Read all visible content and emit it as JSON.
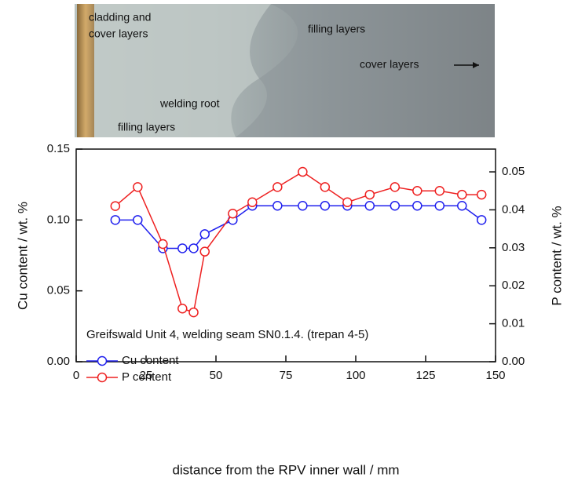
{
  "chart_data": {
    "type": "line",
    "annotations": [
      "cladding and",
      "cover layers",
      "filling layers",
      "welding root",
      "filling layers",
      "cover layers"
    ],
    "xlabel": "distance from the RPV inner wall / mm",
    "ylabel": "Cu content / wt. %",
    "y2label": "P content / wt. %",
    "legend_title": "Greifswald Unit 4, welding seam SN0.1.4. (trepan 4-5)",
    "x": [
      14,
      22,
      31,
      38,
      42,
      46,
      56,
      63,
      72,
      81,
      89,
      97,
      105,
      114,
      122,
      130,
      138,
      145
    ],
    "series": [
      {
        "name": "Cu content",
        "color": "#2020ee",
        "values": [
          0.1,
          0.1,
          0.08,
          0.08,
          0.08,
          0.09,
          0.1,
          0.11,
          0.11,
          0.11,
          0.11,
          0.11,
          0.11,
          0.11,
          0.11,
          0.11,
          0.11,
          0.1
        ]
      },
      {
        "name": "P content",
        "color": "#ee2020",
        "axis": "y2",
        "values": [
          0.041,
          0.046,
          0.031,
          0.014,
          0.013,
          0.029,
          0.039,
          0.042,
          0.046,
          0.05,
          0.046,
          0.042,
          0.044,
          0.046,
          0.045,
          0.045,
          0.044,
          0.044
        ]
      }
    ],
    "xlim": [
      0,
      150
    ],
    "xticks": [
      0,
      25,
      50,
      75,
      100,
      125,
      150
    ],
    "ylim": [
      0,
      0.15
    ],
    "yticks": [
      {
        "value": 0,
        "label": "0.00"
      },
      0.05,
      {
        "value": 0.1,
        "label": "0.10"
      },
      0.15
    ],
    "y2lim": [
      0,
      0.056
    ],
    "y2ticks": [
      {
        "value": 0,
        "label": "0.00"
      },
      0.01,
      0.02,
      0.03,
      0.04,
      0.05
    ]
  }
}
